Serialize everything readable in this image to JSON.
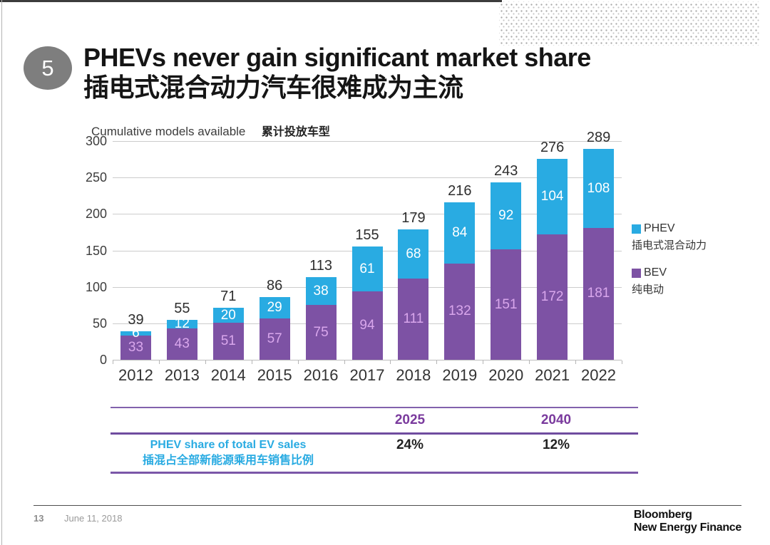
{
  "slide": {
    "number": "5",
    "title_en": "PHEVs never gain significant market share",
    "title_zh": "插电式混合动力汽车很难成为主流"
  },
  "chart": {
    "label_en": "Cumulative models available",
    "label_zh": "累计投放车型"
  },
  "chart_data": {
    "type": "bar",
    "stacked": true,
    "title": "Cumulative models available 累计投放车型",
    "categories": [
      "2012",
      "2013",
      "2014",
      "2015",
      "2016",
      "2017",
      "2018",
      "2019",
      "2020",
      "2021",
      "2022"
    ],
    "series": [
      {
        "name": "BEV",
        "name_zh": "纯电动",
        "color": "#7d52a4",
        "label_color": "#d9a7ec",
        "values": [
          33,
          43,
          51,
          57,
          75,
          94,
          111,
          132,
          151,
          172,
          181
        ]
      },
      {
        "name": "PHEV",
        "name_zh": "插电式混合动力",
        "color": "#29abe2",
        "label_color": "#ffffff",
        "values": [
          6,
          12,
          20,
          29,
          38,
          61,
          68,
          84,
          92,
          104,
          108
        ]
      }
    ],
    "totals": [
      39,
      55,
      71,
      86,
      113,
      155,
      179,
      216,
      243,
      276,
      289
    ],
    "xlabel": "",
    "ylabel": "Cumulative models available",
    "ylim": [
      0,
      300
    ],
    "yticks": [
      0,
      50,
      100,
      150,
      200,
      250,
      300
    ],
    "grid": true,
    "legend_position": "right"
  },
  "table": {
    "columns": [
      "2025",
      "2040"
    ],
    "row_label_en": "PHEV share of total EV sales",
    "row_label_zh": "插混占全部新能源乘用车销售比例",
    "values": [
      "24%",
      "12%"
    ]
  },
  "footer": {
    "page": "13",
    "date": "June 11, 2018",
    "brand_line1": "Bloomberg",
    "brand_line2": "New Energy Finance"
  }
}
